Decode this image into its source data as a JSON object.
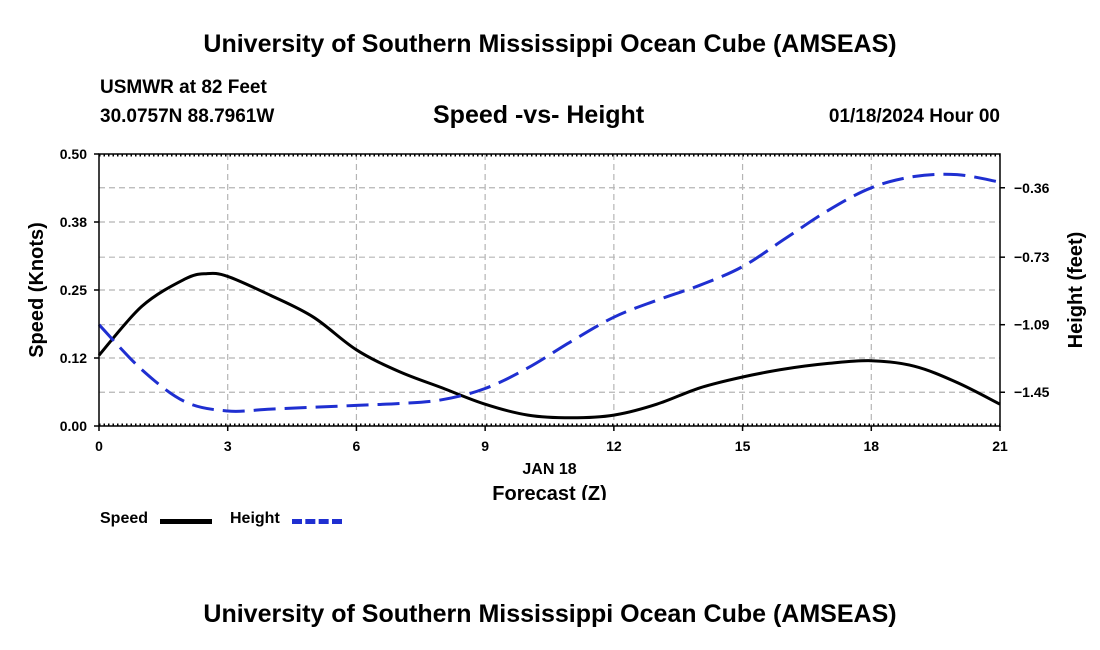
{
  "header": {
    "title": "University of Southern Mississippi Ocean Cube (AMSEAS)",
    "station": "USMWR at 82 Feet",
    "coords": "30.0757N  88.7961W",
    "subtitle": "Speed -vs- Height",
    "datetime": "01/18/2024 Hour 00"
  },
  "footer": {
    "title": "University of Southern Mississippi Ocean Cube (AMSEAS)"
  },
  "chart_data": {
    "type": "line",
    "title": "Speed -vs- Height",
    "xlabel": "Forecast (Z)",
    "x_sublabel": "JAN 18",
    "ylabel_left": "Speed (Knots)",
    "ylabel_right": "Height (feet)",
    "xlim": [
      0,
      21
    ],
    "ylim_left": [
      0,
      0.5
    ],
    "ylim_right": [
      -1.63,
      -0.18
    ],
    "x_ticks": [
      0,
      3,
      6,
      9,
      12,
      15,
      18,
      21
    ],
    "x_tick_labels": [
      "0",
      "3",
      "6",
      "9",
      "12",
      "15",
      "18",
      "21"
    ],
    "y_left_ticks": [
      0,
      0.125,
      0.25,
      0.375,
      0.5
    ],
    "y_left_tick_labels": [
      "0.00",
      "0.12",
      "0.25",
      "0.38",
      "0.50"
    ],
    "y_right_ticks": [
      -1.45,
      -1.09,
      -0.73,
      -0.36
    ],
    "y_right_tick_labels": [
      "−1.45",
      "−1.09",
      "−0.73",
      "−0.36"
    ],
    "grid": true,
    "legend_position": "bottom-left",
    "series": [
      {
        "name": "Speed",
        "axis": "left",
        "color": "#000000",
        "dash": "solid",
        "x": [
          0,
          1,
          2,
          2.5,
          3,
          4,
          5,
          6,
          7,
          8,
          9,
          10,
          11,
          12,
          13,
          14,
          15,
          16,
          17,
          18,
          19,
          20,
          21
        ],
        "y": [
          0.13,
          0.22,
          0.27,
          0.28,
          0.275,
          0.24,
          0.2,
          0.14,
          0.1,
          0.07,
          0.04,
          0.02,
          0.015,
          0.02,
          0.04,
          0.07,
          0.09,
          0.105,
          0.115,
          0.12,
          0.11,
          0.08,
          0.04
        ]
      },
      {
        "name": "Height",
        "axis": "right",
        "color": "#1f2fd1",
        "dash": "dashed",
        "x": [
          0,
          1,
          2,
          3,
          4,
          5,
          6,
          7,
          8,
          9,
          10,
          11,
          12,
          13,
          14,
          15,
          16,
          17,
          18,
          19,
          20,
          21
        ],
        "y": [
          -1.09,
          -1.33,
          -1.5,
          -1.55,
          -1.54,
          -1.53,
          -1.52,
          -1.51,
          -1.49,
          -1.43,
          -1.32,
          -1.18,
          -1.05,
          -0.96,
          -0.88,
          -0.78,
          -0.63,
          -0.48,
          -0.36,
          -0.3,
          -0.29,
          -0.33
        ]
      }
    ]
  }
}
